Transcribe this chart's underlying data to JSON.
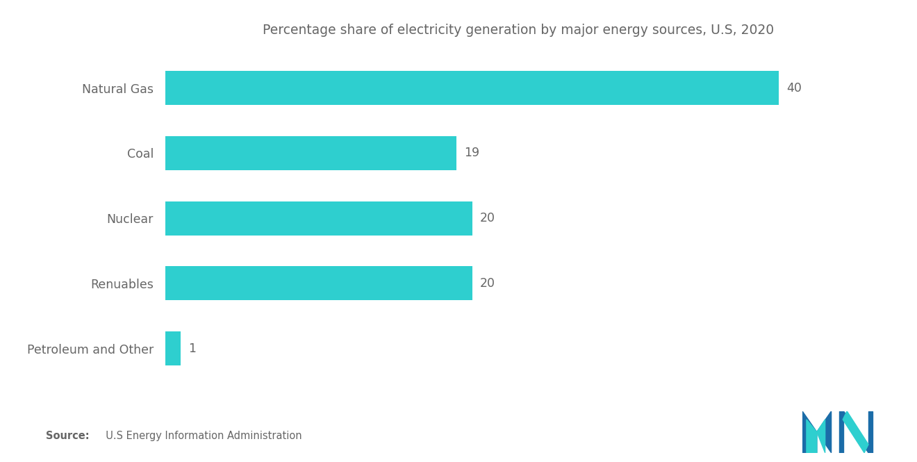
{
  "title": "Percentage share of electricity generation by major energy sources, U.S, 2020",
  "categories": [
    "Natural Gas",
    "Coal",
    "Nuclear",
    "Renuables",
    "Petroleum and Other"
  ],
  "values": [
    40,
    19,
    20,
    20,
    1
  ],
  "bar_color": "#2ECFCF",
  "background_color": "#FFFFFF",
  "text_color": "#888888",
  "label_color": "#666666",
  "title_fontsize": 13.5,
  "label_fontsize": 12.5,
  "value_fontsize": 12.5,
  "source_bold": "Source:",
  "source_rest": "  U.S Energy Information Administration",
  "xlim": [
    0,
    46
  ],
  "bar_height": 0.52,
  "logo_colors": {
    "dark_blue": "#1B6CA8",
    "teal": "#2ECFCF"
  }
}
